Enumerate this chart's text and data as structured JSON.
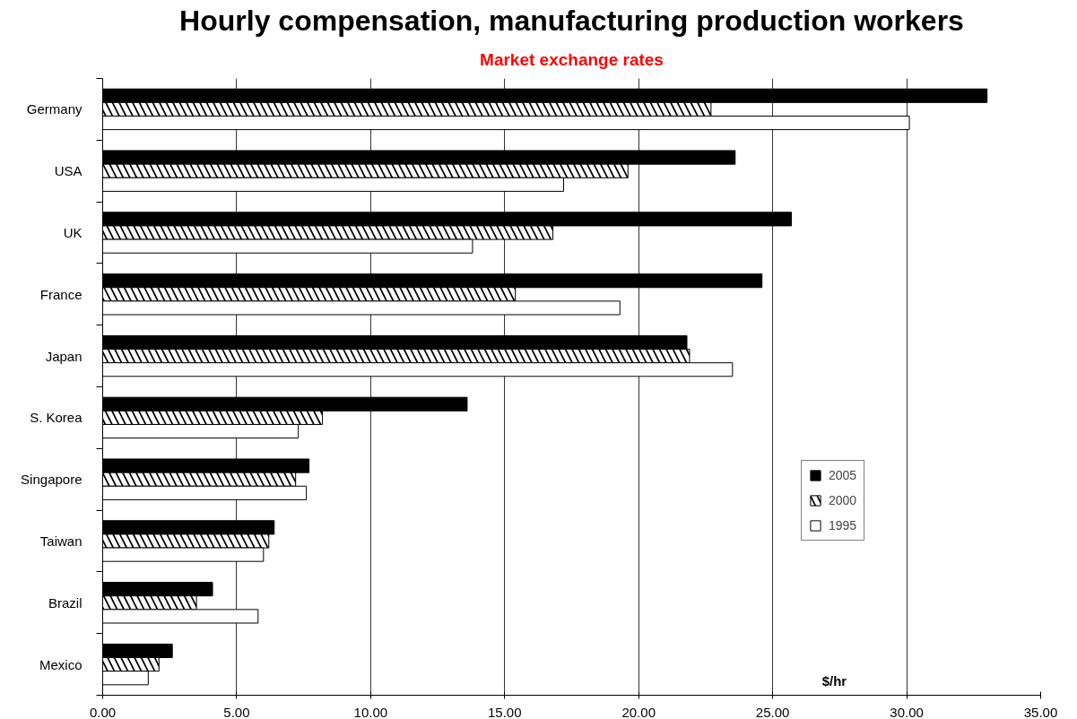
{
  "chart_data": {
    "type": "bar",
    "orientation": "horizontal",
    "title": "Hourly compensation, manufacturing production workers",
    "subtitle": "Market exchange rates",
    "xlabel": "$/hr",
    "categories": [
      "Germany",
      "USA",
      "UK",
      "France",
      "Japan",
      "S. Korea",
      "Singapore",
      "Taiwan",
      "Brazil",
      "Mexico"
    ],
    "series": [
      {
        "name": "2005",
        "color": "#000000",
        "values": [
          33.0,
          23.6,
          25.7,
          24.6,
          21.8,
          13.6,
          7.7,
          6.4,
          4.1,
          2.6
        ]
      },
      {
        "name": "2000",
        "color": "#000000",
        "values": [
          22.7,
          19.6,
          16.8,
          15.4,
          21.9,
          8.2,
          7.2,
          6.2,
          3.5,
          2.1
        ]
      },
      {
        "name": "1995",
        "color": "#ffffff",
        "values": [
          30.1,
          17.2,
          13.8,
          19.3,
          23.5,
          7.3,
          7.6,
          6.0,
          5.8,
          1.7
        ]
      }
    ],
    "xlim": [
      0,
      35
    ],
    "xticks": [
      {
        "value": 0,
        "label": "0.00"
      },
      {
        "value": 5,
        "label": "5.00"
      },
      {
        "value": 10,
        "label": "10.00"
      },
      {
        "value": 15,
        "label": "15.00"
      },
      {
        "value": 20,
        "label": "20.00"
      },
      {
        "value": 25,
        "label": "25.00"
      },
      {
        "value": 30,
        "label": "30.00"
      },
      {
        "value": 35,
        "label": "35.00"
      }
    ],
    "grid": "x",
    "legend": "right"
  }
}
